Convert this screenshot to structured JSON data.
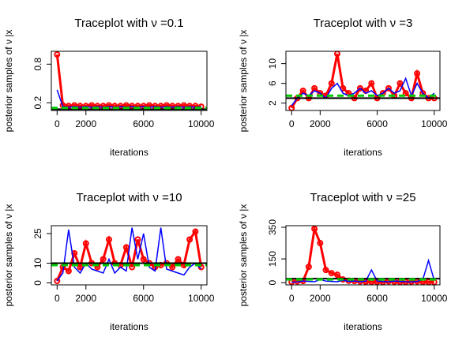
{
  "chart_data": [
    {
      "type": "line",
      "title": "Traceplot with ν =0.1",
      "xlabel": "iterations",
      "ylabel": "posterior samples of ν |x",
      "x": [
        0,
        400,
        800,
        1200,
        1600,
        2000,
        2400,
        2800,
        3200,
        3600,
        4000,
        4400,
        4800,
        5200,
        5600,
        6000,
        6400,
        6800,
        7200,
        7600,
        8000,
        8400,
        8800,
        9200,
        9600,
        10000
      ],
      "series": [
        {
          "color": "#ff0000",
          "marker": "circle",
          "values": [
            0.95,
            0.16,
            0.15,
            0.16,
            0.15,
            0.15,
            0.16,
            0.15,
            0.15,
            0.16,
            0.15,
            0.15,
            0.16,
            0.15,
            0.15,
            0.15,
            0.16,
            0.15,
            0.15,
            0.16,
            0.15,
            0.15,
            0.16,
            0.15,
            0.15,
            0.14
          ]
        },
        {
          "color": "#0000ff",
          "values": [
            0.4,
            0.14,
            0.13,
            0.14,
            0.13,
            0.14,
            0.13,
            0.14,
            0.13,
            0.14,
            0.13,
            0.14,
            0.13,
            0.14,
            0.13,
            0.14,
            0.13,
            0.14,
            0.13,
            0.14,
            0.13,
            0.14,
            0.13,
            0.14,
            0.13,
            0.14
          ]
        }
      ],
      "hlines": [
        {
          "value": 0.1,
          "color": "#000000"
        },
        {
          "value": 0.12,
          "color": "#00cc00",
          "dashed": true
        }
      ],
      "xlim": [
        -400,
        10400
      ],
      "xticks": [
        0,
        2000,
        6000,
        10000
      ],
      "ylim": [
        0.08,
        1.0
      ],
      "yticks": [
        0.2,
        0.8
      ]
    },
    {
      "type": "line",
      "title": "Traceplot with ν =3",
      "xlabel": "iterations",
      "ylabel": "posterior samples of ν |x",
      "x": [
        0,
        400,
        800,
        1200,
        1600,
        2000,
        2400,
        2800,
        3200,
        3600,
        4000,
        4400,
        4800,
        5200,
        5600,
        6000,
        6400,
        6800,
        7200,
        7600,
        8000,
        8400,
        8800,
        9200,
        9600,
        10000
      ],
      "series": [
        {
          "color": "#ff0000",
          "marker": "circle",
          "values": [
            1,
            3,
            4.5,
            3,
            5,
            4,
            3.5,
            6,
            12,
            5,
            4,
            3,
            5,
            4.5,
            6,
            3,
            4,
            5,
            3.5,
            6,
            4,
            3,
            8,
            4,
            3,
            3
          ]
        },
        {
          "color": "#0000ff",
          "values": [
            1.5,
            3,
            4,
            3.5,
            4.5,
            4,
            3,
            5,
            6,
            4,
            3.5,
            4,
            5,
            4,
            4.5,
            3.5,
            4,
            5,
            4,
            4.5,
            7,
            3.5,
            6,
            4,
            3,
            4
          ]
        }
      ],
      "hlines": [
        {
          "value": 3,
          "color": "#000000"
        },
        {
          "value": 3.5,
          "color": "#00cc00",
          "dashed": true
        }
      ],
      "xlim": [
        -400,
        10400
      ],
      "xticks": [
        0,
        2000,
        6000,
        10000
      ],
      "ylim": [
        0.5,
        12.5
      ],
      "yticks": [
        2,
        6,
        10
      ]
    },
    {
      "type": "line",
      "title": "Traceplot with ν =10",
      "xlabel": "iterations",
      "ylabel": "posterior samples of ν |x",
      "x": [
        0,
        400,
        800,
        1200,
        1600,
        2000,
        2400,
        2800,
        3200,
        3600,
        4000,
        4400,
        4800,
        5200,
        5600,
        6000,
        6400,
        6800,
        7200,
        7600,
        8000,
        8400,
        8800,
        9200,
        9600,
        10000
      ],
      "series": [
        {
          "color": "#ff0000",
          "marker": "circle",
          "values": [
            1,
            8,
            6,
            15,
            8,
            20,
            10,
            8,
            12,
            22,
            10,
            9,
            18,
            8,
            22,
            12,
            10,
            8,
            9,
            10,
            8,
            12,
            9,
            22,
            26,
            8
          ]
        },
        {
          "color": "#0000ff",
          "values": [
            1,
            5,
            27,
            8,
            5,
            10,
            7,
            6,
            5,
            12,
            5,
            8,
            6,
            28,
            12,
            25,
            8,
            6,
            28,
            7,
            6,
            5,
            4,
            8,
            10,
            7
          ]
        }
      ],
      "hlines": [
        {
          "value": 10,
          "color": "#000000"
        },
        {
          "value": 9,
          "color": "#00cc00",
          "dashed": true
        }
      ],
      "xlim": [
        -400,
        10400
      ],
      "xticks": [
        0,
        2000,
        6000,
        10000
      ],
      "ylim": [
        -1,
        29
      ],
      "yticks": [
        0,
        10,
        25
      ]
    },
    {
      "type": "line",
      "title": "Traceplot with ν =25",
      "xlabel": "iterations",
      "ylabel": "posterior samples of ν |x",
      "x": [
        0,
        400,
        800,
        1200,
        1600,
        2000,
        2400,
        2800,
        3200,
        3600,
        4000,
        4400,
        4800,
        5200,
        5600,
        6000,
        6400,
        6800,
        7200,
        7600,
        8000,
        8400,
        8800,
        9200,
        9600,
        10000
      ],
      "series": [
        {
          "color": "#ff0000",
          "marker": "circle",
          "values": [
            5,
            8,
            10,
            100,
            340,
            250,
            80,
            60,
            50,
            20,
            12,
            10,
            8,
            6,
            5,
            5,
            4,
            8,
            6,
            5,
            4,
            6,
            8,
            5,
            4,
            3
          ]
        },
        {
          "color": "#0000ff",
          "values": [
            2,
            5,
            10,
            8,
            6,
            20,
            10,
            8,
            6,
            15,
            8,
            10,
            6,
            10,
            80,
            10,
            8,
            6,
            10,
            8,
            6,
            5,
            8,
            20,
            140,
            15
          ]
        }
      ],
      "hlines": [
        {
          "value": 25,
          "color": "#000000"
        },
        {
          "value": 20,
          "color": "#00cc00",
          "dashed": true
        }
      ],
      "xlim": [
        -400,
        10400
      ],
      "xticks": [
        0,
        2000,
        6000,
        10000
      ],
      "ylim": [
        -14,
        360
      ],
      "yticks": [
        0,
        150,
        350
      ]
    }
  ]
}
